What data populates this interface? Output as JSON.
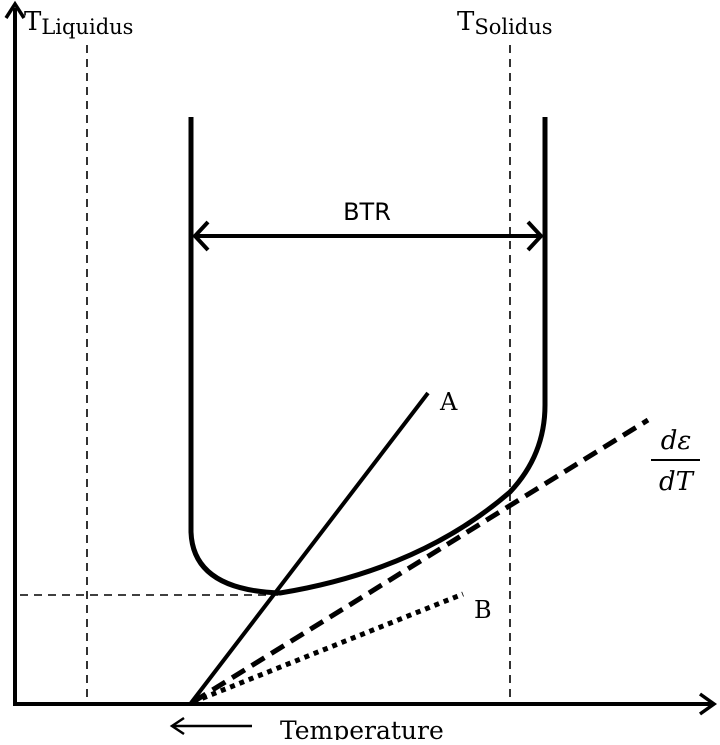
{
  "labels": {
    "t_liquidus_main": "T",
    "t_liquidus_sub": "Liquidus",
    "t_solidus_main": "T",
    "t_solidus_sub": "Solidus",
    "btr": "BTR",
    "line_a": "A",
    "line_b": "B",
    "strain_rate_num": "dε",
    "strain_rate_den": "dT",
    "x_axis": "Temperature"
  },
  "colors": {
    "ink": "#000000",
    "background": "#ffffff"
  }
}
